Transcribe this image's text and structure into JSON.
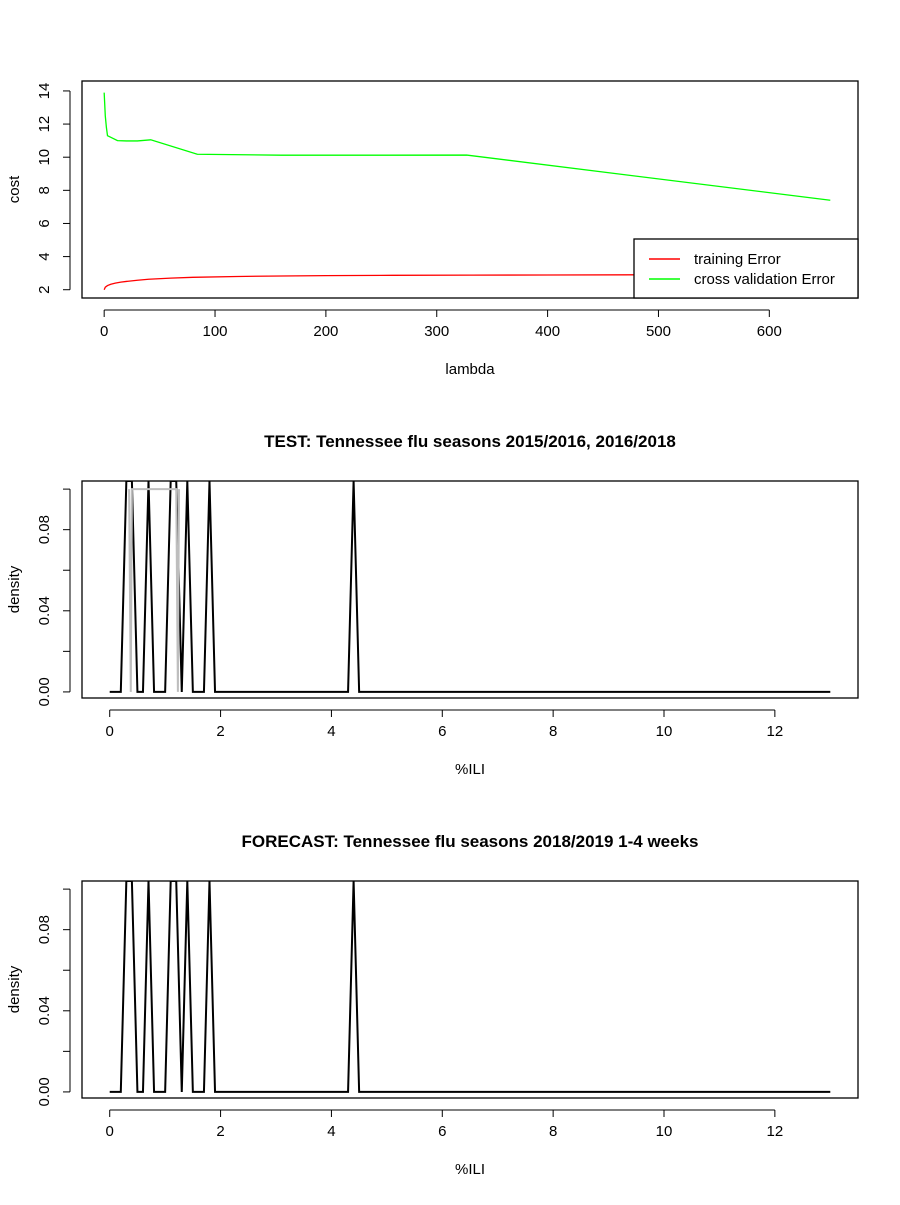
{
  "chart_data": [
    {
      "type": "line",
      "title": "",
      "xlabel": "lambda",
      "ylabel": "cost",
      "xlim": [
        -20,
        680
      ],
      "ylim": [
        1.5,
        14.6
      ],
      "xticks": [
        0,
        100,
        200,
        300,
        400,
        500,
        600
      ],
      "yticks": [
        2,
        4,
        6,
        8,
        10,
        12,
        14
      ],
      "legend": {
        "position": "bottom-right"
      },
      "series": [
        {
          "name": "training Error",
          "color": "#ff0000",
          "x": [
            0,
            1,
            3,
            6,
            10,
            15,
            20,
            30,
            40,
            60,
            80,
            120,
            160,
            200,
            260,
            330,
            400,
            480
          ],
          "y": [
            2.0,
            2.15,
            2.25,
            2.33,
            2.4,
            2.46,
            2.5,
            2.57,
            2.63,
            2.7,
            2.75,
            2.8,
            2.83,
            2.85,
            2.87,
            2.88,
            2.89,
            2.9
          ]
        },
        {
          "name": "cross validation Error",
          "color": "#00ff00",
          "x": [
            0,
            1,
            2,
            3,
            6,
            12,
            20,
            30,
            42,
            84,
            160,
            220,
            327,
            655
          ],
          "y": [
            13.9,
            12.5,
            11.8,
            11.3,
            11.2,
            11.0,
            10.98,
            10.98,
            11.05,
            10.18,
            10.12,
            10.12,
            10.13,
            7.4
          ]
        }
      ]
    },
    {
      "type": "line",
      "title": "TEST: Tennessee  flu seasons 2015/2016, 2016/2018",
      "xlabel": "%ILI",
      "ylabel": "density",
      "xlim": [
        -0.5,
        13.5
      ],
      "ylim": [
        -0.003,
        0.104
      ],
      "xticks": [
        0,
        2,
        4,
        6,
        8,
        10,
        12
      ],
      "yticks": [
        0.0,
        0.04,
        0.08
      ],
      "yticks_unlabeled": [
        0.02,
        0.06,
        0.1
      ],
      "series": [
        {
          "name": "",
          "color": "#000000",
          "x": [
            0,
            0.2,
            0.3,
            0.4,
            0.5,
            0.6,
            0.7,
            0.8,
            1.0,
            1.1,
            1.2,
            1.3,
            1.4,
            1.5,
            1.7,
            1.8,
            1.9,
            4.3,
            4.4,
            4.5,
            13
          ],
          "y": [
            0,
            0,
            0.104,
            0.104,
            0,
            0,
            0.104,
            0,
            0,
            0.104,
            0.104,
            0,
            0.104,
            0,
            0,
            0.104,
            0,
            0,
            0.104,
            0,
            0
          ]
        },
        {
          "name": "",
          "color": "#bebebe",
          "x": [
            0.35,
            0.38,
            0.4,
            1.2,
            1.23,
            1.25
          ],
          "y": [
            0.1,
            0,
            0.1,
            0.1,
            0,
            0.1
          ]
        }
      ]
    },
    {
      "type": "line",
      "title": "FORECAST: Tennessee flu seasons 2018/2019 1-4 weeks",
      "xlabel": "%ILI",
      "ylabel": "density",
      "xlim": [
        -0.5,
        13.5
      ],
      "ylim": [
        -0.003,
        0.104
      ],
      "xticks": [
        0,
        2,
        4,
        6,
        8,
        10,
        12
      ],
      "yticks": [
        0.0,
        0.04,
        0.08
      ],
      "yticks_unlabeled": [
        0.02,
        0.06,
        0.1
      ],
      "series": [
        {
          "name": "",
          "color": "#000000",
          "x": [
            0,
            0.2,
            0.3,
            0.4,
            0.5,
            0.6,
            0.7,
            0.8,
            1.0,
            1.1,
            1.2,
            1.3,
            1.4,
            1.5,
            1.7,
            1.8,
            1.9,
            4.3,
            4.4,
            4.5,
            13
          ],
          "y": [
            0,
            0,
            0.104,
            0.104,
            0,
            0,
            0.104,
            0,
            0,
            0.104,
            0.104,
            0,
            0.104,
            0,
            0,
            0.104,
            0,
            0,
            0.104,
            0,
            0
          ]
        }
      ]
    }
  ]
}
